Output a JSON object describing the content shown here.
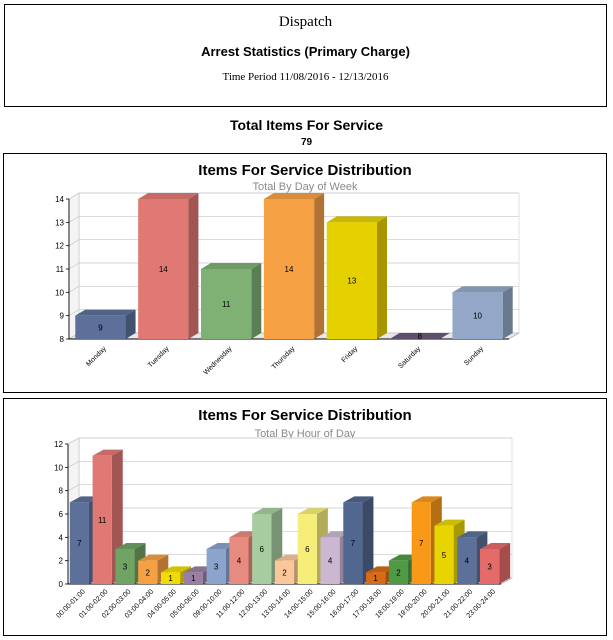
{
  "header": {
    "department": "Dispatch",
    "report_title": "Arrest Statistics (Primary Charge)",
    "time_period": "Time Period 11/08/2016 - 12/13/2016"
  },
  "summary": {
    "label": "Total Items For Service",
    "value": "79"
  },
  "chart_data": [
    {
      "type": "bar",
      "title": "Items For Service Distribution",
      "subtitle": "Total By Day of Week",
      "xlabel": "",
      "ylabel": "",
      "ylim": [
        8,
        14
      ],
      "yticks": [
        "8",
        "9",
        "10",
        "11",
        "12",
        "13",
        "14"
      ],
      "grid": true,
      "categories": [
        "Monday",
        "Tuesday",
        "Wednesday",
        "Thursday",
        "Friday",
        "Saturday",
        "Sunday"
      ],
      "values": [
        9,
        14,
        11,
        14,
        13,
        8,
        10
      ],
      "colors": [
        "#5c7099",
        "#e07873",
        "#7fb074",
        "#f6a044",
        "#e6d100",
        "#6b5b7b",
        "#93a8c8"
      ]
    },
    {
      "type": "bar",
      "title": "Items For Service Distribution",
      "subtitle": "Total By Hour of Day",
      "xlabel": "",
      "ylabel": "",
      "ylim": [
        0,
        12
      ],
      "yticks": [
        "0",
        "2",
        "4",
        "6",
        "8",
        "10",
        "12"
      ],
      "grid": true,
      "categories": [
        "00:00-01:00",
        "01:00-02:00",
        "02:00-03:00",
        "03:00-04:00",
        "04:00-05:00",
        "05:00-06:00",
        "09:00-10:00",
        "11:00-12:00",
        "12:00-13:00",
        "13:00-14:00",
        "14:00-15:00",
        "15:00-16:00",
        "16:00-17:00",
        "17:00-18:00",
        "18:00-19:00",
        "19:00-20:00",
        "20:00-21:00",
        "21:00-22:00",
        "23:00-24:00"
      ],
      "values": [
        7,
        11,
        3,
        2,
        1,
        1,
        3,
        4,
        6,
        2,
        6,
        4,
        7,
        1,
        2,
        7,
        5,
        4,
        3
      ],
      "colors": [
        "#5c7099",
        "#e07873",
        "#6fa464",
        "#f6a044",
        "#f0dc00",
        "#9a7fa5",
        "#8aa4cc",
        "#e78b80",
        "#a7cca0",
        "#fbc79a",
        "#f7ee7a",
        "#cbb7d1",
        "#52678f",
        "#d86b14",
        "#4f9a45",
        "#f89a18",
        "#e8d400",
        "#5c7099",
        "#e56a6a"
      ]
    }
  ]
}
